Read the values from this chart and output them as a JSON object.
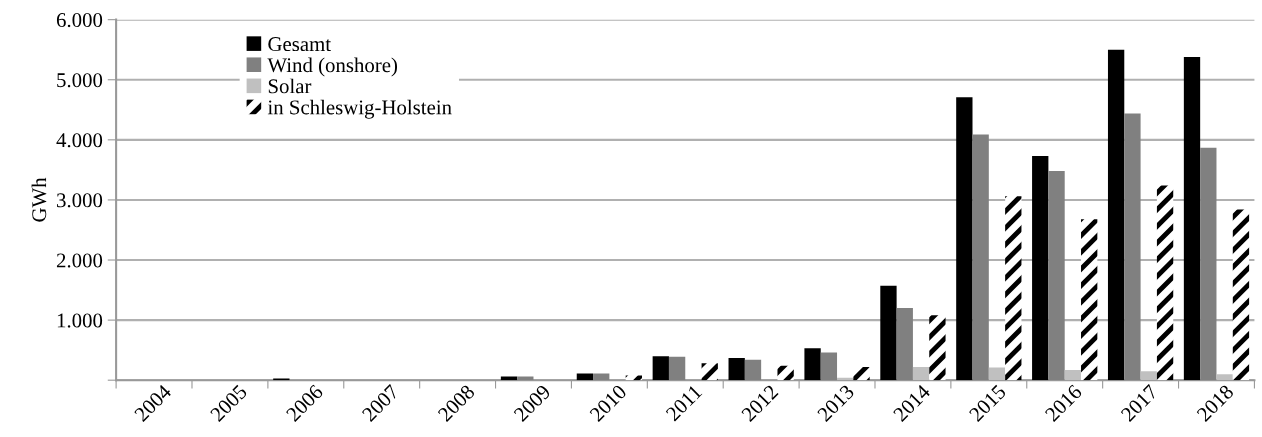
{
  "chart_data": {
    "type": "bar",
    "ylabel": "GWh",
    "categories": [
      "2004",
      "2005",
      "2006",
      "2007",
      "2008",
      "2009",
      "2010",
      "2011",
      "2012",
      "2013",
      "2014",
      "2015",
      "2016",
      "2017",
      "2018"
    ],
    "series": [
      {
        "name": "Gesamt",
        "color": "#000000",
        "values": [
          0,
          null,
          30,
          0,
          0,
          60,
          110,
          400,
          370,
          530,
          1570,
          4710,
          3730,
          5500,
          5380
        ]
      },
      {
        "name": "Wind (onshore)",
        "color": "#808080",
        "values": [
          0,
          null,
          0,
          0,
          0,
          60,
          110,
          390,
          340,
          460,
          1200,
          4090,
          3480,
          4440,
          3870
        ]
      },
      {
        "name": "Solar",
        "color": "#c0c0c0",
        "values": [
          0,
          0,
          0,
          0,
          0,
          0,
          0,
          0,
          0,
          40,
          220,
          210,
          170,
          150,
          100
        ]
      },
      {
        "name": "in Schleswig-Holstein",
        "color": "#000000",
        "values": [
          0,
          0,
          0,
          0,
          0,
          0,
          80,
          280,
          240,
          220,
          1080,
          3060,
          2680,
          3240,
          2840
        ]
      }
    ],
    "ylim": [
      0,
      6000
    ],
    "yticks": [
      {
        "value": 0,
        "label": null
      },
      {
        "value": 1000,
        "label": "1.000"
      },
      {
        "value": 2000,
        "label": "2.000"
      },
      {
        "value": 3000,
        "label": "3.000"
      },
      {
        "value": 4000,
        "label": "4.000"
      },
      {
        "value": 5000,
        "label": "5.000"
      },
      {
        "value": 6000,
        "label": "6.000"
      }
    ],
    "grid": "y",
    "legend": "top left"
  }
}
